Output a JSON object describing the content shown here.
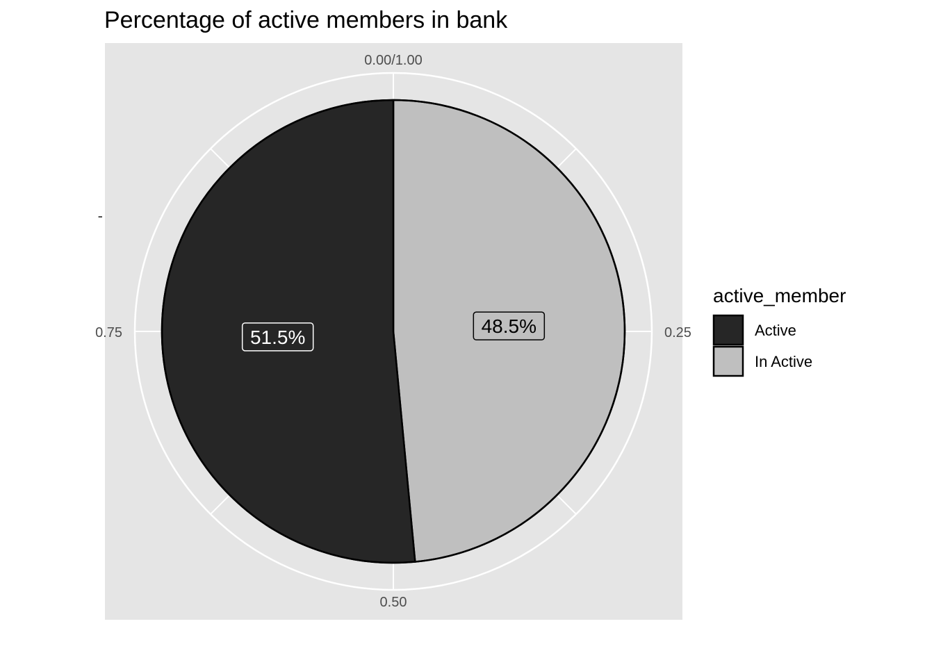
{
  "chart_data": {
    "type": "pie",
    "title": "Percentage of active members in bank",
    "legend_title": "active_member",
    "legend_position": "right",
    "slices": [
      {
        "name": "Active",
        "value": 0.515,
        "label": "51.5%",
        "color": "#262626",
        "label_text_color": "#ffffff"
      },
      {
        "name": "In Active",
        "value": 0.485,
        "label": "48.5%",
        "color": "#bfbfbf",
        "label_text_color": "#000000"
      }
    ],
    "theta_ticks": [
      "0.00/1.00",
      "0.25",
      "0.50",
      "0.75"
    ],
    "theta_tick_values": [
      0,
      0.25,
      0.5,
      0.75
    ],
    "y_axis_tick": "-",
    "grid": true,
    "panel_background": "#e5e5e5",
    "grid_color": "#ffffff"
  }
}
